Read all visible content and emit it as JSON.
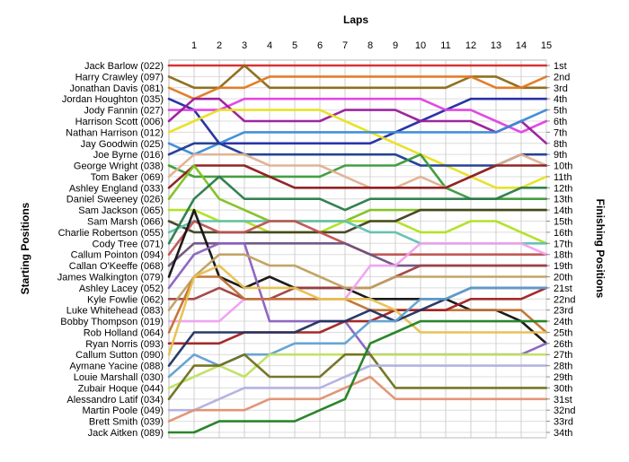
{
  "chart_data": {
    "type": "line",
    "title": "",
    "xlabel": "Laps",
    "ylabel_left": "Starting Positions",
    "ylabel_right": "Finishing Positions",
    "laps": [
      1,
      2,
      3,
      4,
      5,
      6,
      7,
      8,
      9,
      10,
      11,
      12,
      13,
      14,
      15
    ],
    "grid": true,
    "drivers": [
      "Jack Barlow (022)",
      "Harry Crawley (097)",
      "Jonathan Davis (081)",
      "Jordan Houghton (035)",
      "Jody Fannin (027)",
      "Harrison Scott (006)",
      "Nathan Harrison (012)",
      "Jay Goodwin (025)",
      "Joe Byrne (016)",
      "George Wright (038)",
      "Tom Baker (069)",
      "Ashley England (033)",
      "Daniel Sweeney (026)",
      "Sam Jackson (065)",
      "Sam Marsh (066)",
      "Charlie Robertson (055)",
      "Cody Tree (071)",
      "Callum Pointon (094)",
      "Callan O'Keeffe (068)",
      "James Walkington (079)",
      "Ashley Lacey (052)",
      "Kyle Fowlie (062)",
      "Luke Whitehead (083)",
      "Bobby Thompson (019)",
      "Rob Holland (064)",
      "Ryan Norris (093)",
      "Callum Sutton (090)",
      "Aymane Yacine (088)",
      "Louie Marshall (030)",
      "Zubair Hoque (044)",
      "Alessandro Latif (034)",
      "Martin Poole (049)",
      "Brett Smith (039)",
      "Jack Aitken (089)"
    ],
    "finishing_positions": [
      "1st",
      "2nd",
      "3rd",
      "4th",
      "5th",
      "6th",
      "7th",
      "8th",
      "9th",
      "10th",
      "11th",
      "12th",
      "13th",
      "14th",
      "15th",
      "16th",
      "17th",
      "18th",
      "19th",
      "20th",
      "21st",
      "22nd",
      "23rd",
      "24th",
      "25th",
      "26th",
      "27th",
      "28th",
      "29th",
      "30th",
      "31st",
      "32nd",
      "33rd",
      "34th"
    ],
    "series": [
      {
        "color": "#d62a2a",
        "values": [
          1,
          1,
          1,
          1,
          1,
          1,
          1,
          1,
          1,
          1,
          1,
          1,
          1,
          1,
          1,
          1
        ]
      },
      {
        "color": "#8b6914",
        "values": [
          2,
          3,
          3,
          1,
          3,
          3,
          3,
          3,
          3,
          3,
          3,
          3,
          2,
          2,
          3,
          3
        ]
      },
      {
        "color": "#e07820",
        "values": [
          3,
          4,
          3,
          3,
          2,
          2,
          2,
          2,
          2,
          2,
          2,
          2,
          2,
          3,
          3,
          2
        ]
      },
      {
        "color": "#1e2aa0",
        "values": [
          4,
          5,
          8,
          8,
          8,
          8,
          8,
          8,
          8,
          7,
          6,
          5,
          4,
          4,
          4,
          4
        ]
      },
      {
        "color": "#e040e0",
        "values": [
          5,
          5,
          5,
          4,
          4,
          4,
          4,
          4,
          4,
          4,
          4,
          5,
          5,
          6,
          7,
          6
        ]
      },
      {
        "color": "#9a1a9a",
        "values": [
          6,
          4,
          4,
          6,
          6,
          6,
          6,
          5,
          5,
          5,
          6,
          6,
          6,
          7,
          6,
          8
        ]
      },
      {
        "color": "#e8e020",
        "values": [
          7,
          6,
          5,
          5,
          5,
          5,
          5,
          6,
          7,
          8,
          9,
          10,
          11,
          12,
          12,
          11
        ]
      },
      {
        "color": "#3a8ad8",
        "values": [
          8,
          9,
          8,
          7,
          7,
          7,
          7,
          7,
          7,
          7,
          7,
          7,
          7,
          7,
          6,
          5
        ]
      },
      {
        "color": "#1a3a90",
        "values": [
          9,
          8,
          8,
          9,
          9,
          9,
          9,
          9,
          9,
          9,
          10,
          10,
          10,
          10,
          9,
          9
        ]
      },
      {
        "color": "#3a9a3a",
        "values": [
          10,
          11,
          11,
          11,
          11,
          11,
          11,
          10,
          10,
          10,
          9,
          12,
          13,
          13,
          13,
          13
        ]
      },
      {
        "color": "#e0b090",
        "values": [
          11,
          9,
          9,
          9,
          10,
          10,
          10,
          11,
          12,
          12,
          11,
          12,
          11,
          10,
          9,
          10
        ]
      },
      {
        "color": "#8a1a1a",
        "values": [
          12,
          10,
          10,
          10,
          11,
          12,
          12,
          12,
          12,
          12,
          12,
          12,
          11,
          10,
          10,
          10
        ]
      },
      {
        "color": "#80c020",
        "values": [
          13,
          10,
          13,
          14,
          15,
          15,
          15,
          15,
          14,
          14,
          14,
          14,
          14,
          14,
          14,
          14
        ]
      },
      {
        "color": "#b0e020",
        "values": [
          14,
          14,
          15,
          15,
          16,
          16,
          16,
          15,
          15,
          15,
          16,
          16,
          15,
          15,
          16,
          17
        ]
      },
      {
        "color": "#404020",
        "values": [
          15,
          16,
          16,
          16,
          16,
          16,
          16,
          16,
          15,
          15,
          14,
          14,
          14,
          14,
          14,
          14
        ]
      },
      {
        "color": "#60c0b0",
        "values": [
          16,
          15,
          15,
          15,
          15,
          15,
          15,
          15,
          16,
          16,
          17,
          17,
          17,
          17,
          17,
          17
        ]
      },
      {
        "color": "#2a7a4a",
        "values": [
          17,
          13,
          11,
          13,
          13,
          13,
          13,
          14,
          13,
          13,
          13,
          13,
          13,
          13,
          12,
          12
        ]
      },
      {
        "color": "#c05050",
        "values": [
          18,
          15,
          16,
          16,
          15,
          15,
          16,
          17,
          18,
          18,
          18,
          18,
          18,
          18,
          18,
          18
        ]
      },
      {
        "color": "#705080",
        "values": [
          19,
          17,
          17,
          17,
          17,
          17,
          17,
          17,
          18,
          19,
          19,
          19,
          19,
          19,
          19,
          19
        ]
      },
      {
        "color": "#101010",
        "values": [
          20,
          14,
          20,
          21,
          20,
          21,
          21,
          21,
          22,
          22,
          22,
          22,
          23,
          23,
          24,
          26
        ]
      },
      {
        "color": "#8a60c0",
        "values": [
          21,
          18,
          17,
          17,
          24,
          24,
          24,
          24,
          27,
          27,
          27,
          27,
          27,
          27,
          27,
          26
        ]
      },
      {
        "color": "#a04040",
        "values": [
          22,
          22,
          21,
          22,
          22,
          21,
          21,
          21,
          21,
          20,
          19,
          19,
          19,
          19,
          19,
          19
        ]
      },
      {
        "color": "#c0a060",
        "values": [
          23,
          20,
          18,
          18,
          19,
          19,
          20,
          21,
          21,
          20,
          20,
          20,
          20,
          20,
          20,
          20
        ]
      },
      {
        "color": "#f0a0f0",
        "values": [
          24,
          24,
          24,
          22,
          22,
          22,
          22,
          22,
          19,
          19,
          17,
          17,
          17,
          17,
          17,
          18
        ]
      },
      {
        "color": "#c07030",
        "values": [
          25,
          20,
          20,
          22,
          22,
          22,
          22,
          22,
          23,
          23,
          23,
          23,
          23,
          23,
          23,
          25
        ]
      },
      {
        "color": "#a02020",
        "values": [
          26,
          26,
          26,
          25,
          25,
          25,
          25,
          24,
          24,
          23,
          23,
          23,
          22,
          22,
          22,
          21
        ]
      },
      {
        "color": "#e8c050",
        "values": [
          27,
          20,
          19,
          21,
          21,
          21,
          22,
          22,
          22,
          23,
          25,
          25,
          25,
          25,
          25,
          25
        ]
      },
      {
        "color": "#203060",
        "values": [
          28,
          25,
          25,
          25,
          25,
          25,
          24,
          24,
          23,
          24,
          23,
          22,
          21,
          21,
          21,
          21
        ]
      },
      {
        "color": "#60a0d0",
        "values": [
          29,
          27,
          28,
          27,
          27,
          26,
          26,
          26,
          24,
          24,
          22,
          22,
          21,
          21,
          21,
          21
        ]
      },
      {
        "color": "#c0e060",
        "values": [
          30,
          29,
          28,
          29,
          27,
          27,
          27,
          27,
          27,
          27,
          27,
          27,
          27,
          27,
          27,
          27
        ]
      },
      {
        "color": "#707020",
        "values": [
          31,
          28,
          28,
          27,
          29,
          29,
          29,
          27,
          27,
          30,
          30,
          30,
          30,
          30,
          30,
          30
        ]
      },
      {
        "color": "#b0b0e0",
        "values": [
          32,
          32,
          31,
          30,
          30,
          30,
          30,
          29,
          28,
          28,
          28,
          28,
          28,
          28,
          28,
          28
        ]
      },
      {
        "color": "#e09070",
        "values": [
          33,
          32,
          32,
          32,
          31,
          31,
          31,
          30,
          29,
          31,
          31,
          31,
          31,
          31,
          31,
          31
        ]
      },
      {
        "color": "#208020",
        "values": [
          34,
          34,
          33,
          33,
          33,
          33,
          32,
          31,
          26,
          25,
          24,
          24,
          24,
          24,
          24,
          24
        ]
      }
    ]
  }
}
